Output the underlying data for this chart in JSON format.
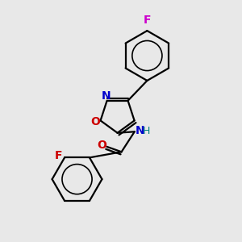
{
  "background_color": "#e8e8e8",
  "bond_color": "#000000",
  "atom_colors": {
    "F_top": "#cc00cc",
    "F_bottom": "#cc0000",
    "O": "#cc0000",
    "N": "#0000cc",
    "H": "#008080",
    "C": "#000000"
  },
  "figsize": [
    3.0,
    3.0
  ],
  "dpi": 100
}
